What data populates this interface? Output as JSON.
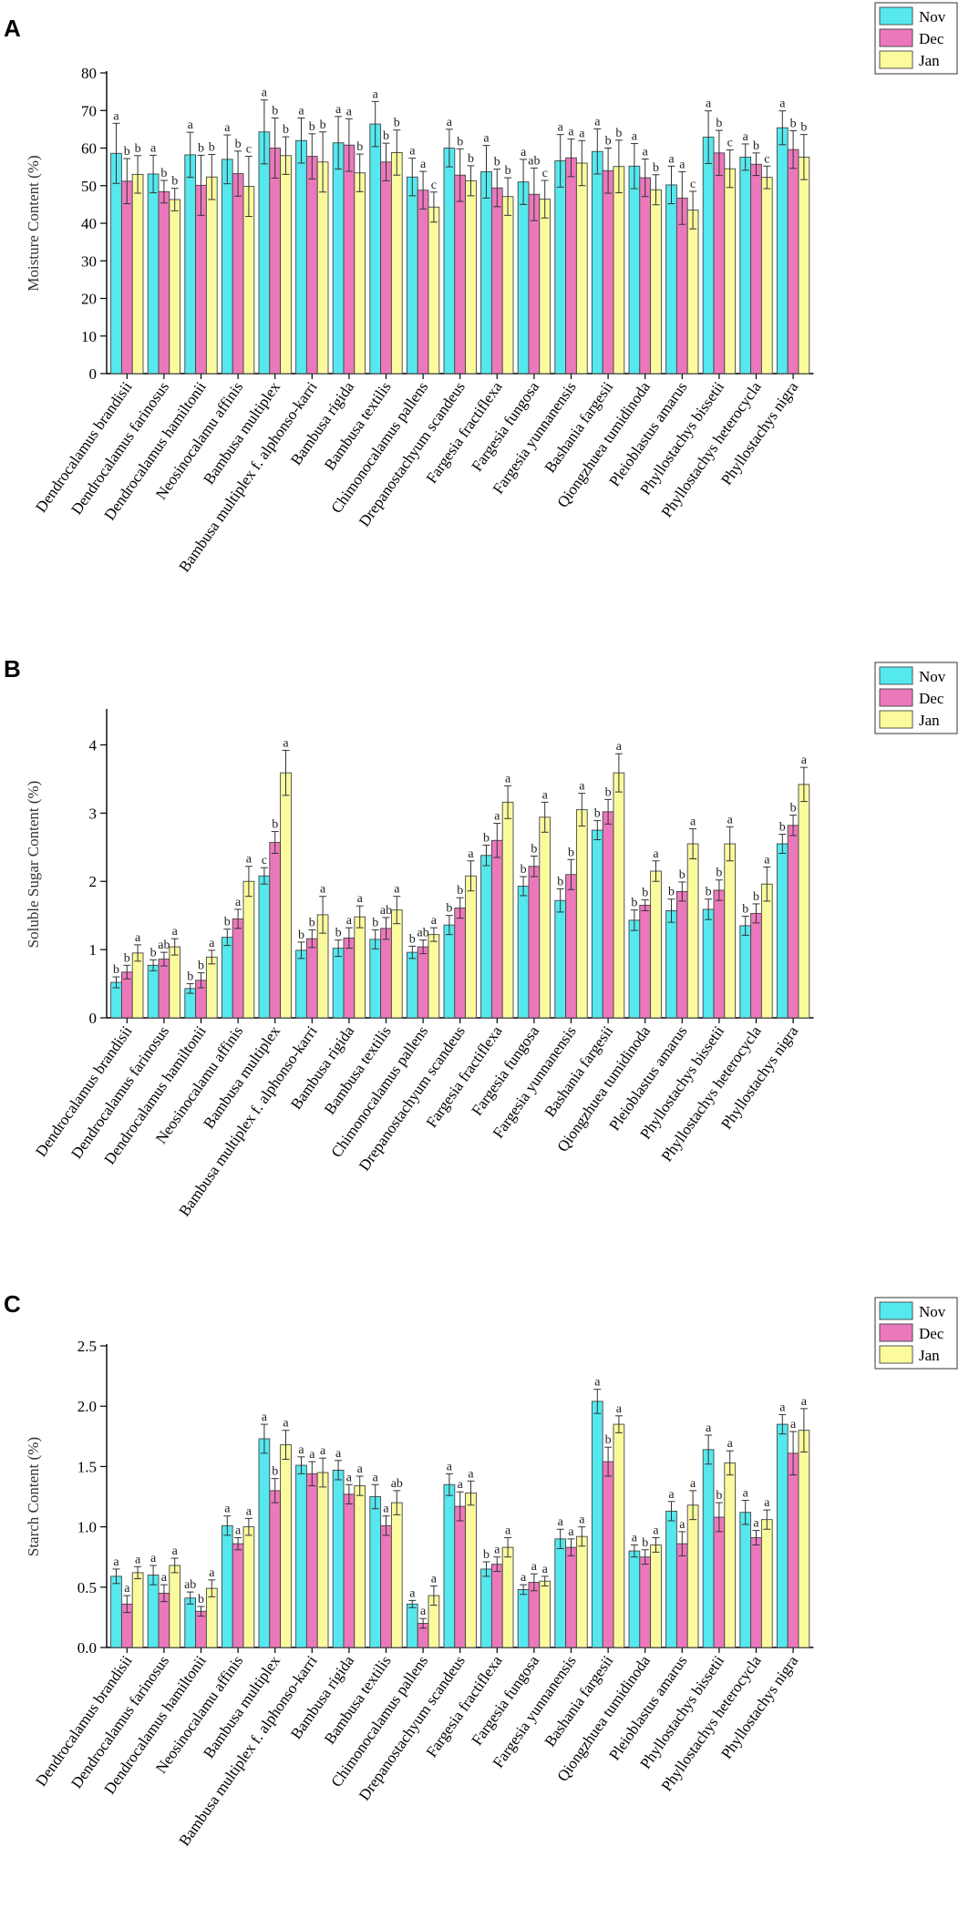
{
  "legend": [
    "Nov",
    "Dec",
    "Jan"
  ],
  "colors": {
    "Nov": "#55e8ee",
    "Dec": "#ec78bc",
    "Jan": "#fbfb9e",
    "outline": "#444444"
  },
  "chart_data": [
    {
      "panel": "A",
      "type": "bar",
      "ylabel": "Moisture Content (%)",
      "ylim": [
        0,
        80
      ],
      "yticks": [
        0,
        10,
        20,
        30,
        40,
        50,
        60,
        70,
        80
      ],
      "categories": [
        "Dendrocalamus brandisii",
        "Dendrocalamus farinosus",
        "Dendrocalamus hamiltonii",
        "Neosinocalamu affinis",
        "Bambusa multiplex",
        "Bambusa multiplex f. alphonso-karri",
        "Bambusa rigida",
        "Bambusa textilis",
        "Chimonocalamus pallens",
        "Drepanostachyum scandeus",
        "Fargesia fractiflexa",
        "Fargesia fungosa",
        "Fargesia yunnanensis",
        "Bashania fargesii",
        "Qiongzhuea tumidinoda",
        "Pleioblastus amarus",
        "Phyllostachys bissetii",
        "Phyllostachys heterocycla",
        "Phyllostachys nigra"
      ],
      "series": [
        {
          "name": "Nov",
          "values": [
            58.6,
            53.1,
            58.2,
            57.0,
            64.3,
            62.0,
            61.4,
            66.4,
            52.3,
            60.0,
            53.7,
            51.0,
            56.6,
            59.1,
            55.2,
            50.2,
            62.9,
            57.6,
            65.4
          ],
          "errors": [
            8,
            5,
            6,
            6.5,
            8.5,
            6,
            7,
            6,
            5,
            5,
            7,
            6,
            7,
            6,
            6,
            5,
            7,
            3.5,
            4.5
          ],
          "labels": [
            "a",
            "a",
            "a",
            "a",
            "a",
            "a",
            "a",
            "a",
            "a",
            "a",
            "a",
            "a",
            "a",
            "a",
            "a",
            "a",
            "a",
            "a",
            "a"
          ]
        },
        {
          "name": "Dec",
          "values": [
            51.2,
            48.4,
            50.1,
            53.2,
            60.0,
            57.8,
            60.8,
            56.3,
            48.8,
            52.8,
            49.4,
            47.7,
            57.4,
            54.0,
            52.1,
            46.7,
            58.7,
            55.7,
            59.6
          ],
          "errors": [
            6,
            3,
            8,
            6,
            8,
            6,
            7,
            5,
            5,
            7,
            5,
            7,
            5,
            6,
            5,
            7,
            6,
            3,
            5
          ],
          "labels": [
            "b",
            "b",
            "b",
            "b",
            "b",
            "b",
            "a",
            "b",
            "a",
            "b",
            "b",
            "ab",
            "a",
            "b",
            "a",
            "a",
            "b",
            "b",
            "b"
          ]
        },
        {
          "name": "Jan",
          "values": [
            53.0,
            46.3,
            52.3,
            49.8,
            58.0,
            56.3,
            53.4,
            58.8,
            44.3,
            51.3,
            47.1,
            46.4,
            56.0,
            55.1,
            48.9,
            43.5,
            54.5,
            52.2,
            57.6
          ],
          "errors": [
            5,
            3,
            6,
            8,
            5,
            8,
            5,
            6,
            4,
            4,
            5,
            5,
            6,
            7,
            4,
            5,
            5,
            3,
            6
          ],
          "labels": [
            "b",
            "b",
            "b",
            "c",
            "b",
            "b",
            "b",
            "b",
            "c",
            "b",
            "b",
            "c",
            "a",
            "b",
            "b",
            "c",
            "c",
            "c",
            "b"
          ]
        }
      ]
    },
    {
      "panel": "B",
      "type": "bar",
      "ylabel": "Soluble Sugar Content (%)",
      "ylim": [
        0,
        4.5
      ],
      "yticks": [
        0,
        1,
        2,
        3,
        4
      ],
      "categories": [
        "Dendrocalamus brandisii",
        "Dendrocalamus farinosus",
        "Dendrocalamus hamiltonii",
        "Neosinocalamu affinis",
        "Bambusa multiplex",
        "Bambusa multiplex f. alphonso-karri",
        "Bambusa rigida",
        "Bambusa textilis",
        "Chimonocalamus pallens",
        "Drepanostachyum scandeus",
        "Fargesia fractiflexa",
        "Fargesia fungosa",
        "Fargesia yunnanensis",
        "Bashania fargesii",
        "Qiongzhuea tumidinoda",
        "Pleioblastus amarus",
        "Phyllostachys bissetii",
        "Phyllostachys heterocycla",
        "Phyllostachys nigra"
      ],
      "series": [
        {
          "name": "Nov",
          "values": [
            0.52,
            0.77,
            0.43,
            1.18,
            2.08,
            0.99,
            1.02,
            1.15,
            0.96,
            1.36,
            2.38,
            1.93,
            1.72,
            2.75,
            1.43,
            1.57,
            1.59,
            1.35,
            2.55
          ],
          "errors": [
            0.08,
            0.08,
            0.07,
            0.12,
            0.12,
            0.12,
            0.12,
            0.14,
            0.09,
            0.14,
            0.15,
            0.14,
            0.17,
            0.14,
            0.15,
            0.17,
            0.15,
            0.14,
            0.14
          ],
          "labels": [
            "b",
            "b",
            "b",
            "b",
            "c",
            "b",
            "b",
            "b",
            "b",
            "b",
            "b",
            "b",
            "b",
            "b",
            "b",
            "b",
            "b",
            "b",
            "b"
          ]
        },
        {
          "name": "Dec",
          "values": [
            0.67,
            0.86,
            0.55,
            1.45,
            2.57,
            1.16,
            1.17,
            1.31,
            1.04,
            1.61,
            2.6,
            2.22,
            2.1,
            3.02,
            1.65,
            1.85,
            1.87,
            1.53,
            2.82
          ],
          "errors": [
            0.1,
            0.1,
            0.11,
            0.14,
            0.16,
            0.13,
            0.15,
            0.16,
            0.1,
            0.15,
            0.25,
            0.15,
            0.22,
            0.18,
            0.08,
            0.14,
            0.15,
            0.14,
            0.15
          ],
          "labels": [
            "b",
            "ab",
            "b",
            "a",
            "b",
            "b",
            "a",
            "ab",
            "ab",
            "b",
            "a",
            "b",
            "b",
            "b",
            "b",
            "b",
            "b",
            "b",
            "b"
          ]
        },
        {
          "name": "Jan",
          "values": [
            0.95,
            1.04,
            0.89,
            2.0,
            3.59,
            1.51,
            1.48,
            1.58,
            1.22,
            2.08,
            3.16,
            2.94,
            3.05,
            3.59,
            2.15,
            2.55,
            2.55,
            1.96,
            3.42
          ],
          "errors": [
            0.12,
            0.12,
            0.1,
            0.22,
            0.33,
            0.27,
            0.16,
            0.2,
            0.1,
            0.22,
            0.24,
            0.22,
            0.24,
            0.28,
            0.15,
            0.22,
            0.25,
            0.25,
            0.25
          ],
          "labels": [
            "a",
            "a",
            "a",
            "a",
            "a",
            "a",
            "a",
            "a",
            "a",
            "a",
            "a",
            "a",
            "a",
            "a",
            "a",
            "a",
            "a",
            "a",
            "a"
          ]
        }
      ]
    },
    {
      "panel": "C",
      "type": "bar",
      "ylabel": "Starch Content (%)",
      "ylim": [
        0,
        2.5
      ],
      "yticks": [
        0.0,
        0.5,
        1.0,
        1.5,
        2.0,
        2.5
      ],
      "categories": [
        "Dendrocalamus brandisii",
        "Dendrocalamus farinosus",
        "Dendrocalamus hamiltonii",
        "Neosinocalamu affinis",
        "Bambusa multiplex",
        "Bambusa multiplex f. alphonso-karri",
        "Bambusa rigida",
        "Bambusa textilis",
        "Chimonocalamus pallens",
        "Drepanostachyum scandeus",
        "Fargesia fractiflexa",
        "Fargesia fungosa",
        "Fargesia yunnanensis",
        "Bashania fargesii",
        "Qiongzhuea tumidinoda",
        "Pleioblastus amarus",
        "Phyllostachys bissetii",
        "Phyllostachys heterocycla",
        "Phyllostachys nigra"
      ],
      "series": [
        {
          "name": "Nov",
          "values": [
            0.59,
            0.6,
            0.41,
            1.01,
            1.73,
            1.51,
            1.47,
            1.25,
            0.36,
            1.35,
            0.65,
            0.48,
            0.9,
            2.04,
            0.8,
            1.13,
            1.64,
            1.12,
            1.85
          ],
          "errors": [
            0.06,
            0.08,
            0.05,
            0.08,
            0.12,
            0.07,
            0.08,
            0.1,
            0.03,
            0.09,
            0.06,
            0.04,
            0.08,
            0.1,
            0.05,
            0.08,
            0.12,
            0.1,
            0.08
          ],
          "labels": [
            "a",
            "a",
            "ab",
            "a",
            "a",
            "a",
            "a",
            "a",
            "a",
            "a",
            "b",
            "a",
            "a",
            "a",
            "a",
            "a",
            "a",
            "a",
            "a"
          ]
        },
        {
          "name": "Dec",
          "values": [
            0.36,
            0.45,
            0.3,
            0.86,
            1.3,
            1.44,
            1.27,
            1.01,
            0.2,
            1.17,
            0.69,
            0.54,
            0.83,
            1.54,
            0.75,
            0.86,
            1.08,
            0.91,
            1.61
          ],
          "errors": [
            0.07,
            0.07,
            0.04,
            0.05,
            0.1,
            0.1,
            0.08,
            0.08,
            0.04,
            0.12,
            0.06,
            0.07,
            0.07,
            0.12,
            0.06,
            0.1,
            0.12,
            0.06,
            0.18
          ],
          "labels": [
            "a",
            "a",
            "b",
            "a",
            "b",
            "a",
            "a",
            "a",
            "a",
            "a",
            "a",
            "a",
            "a",
            "b",
            "b",
            "a",
            "b",
            "a",
            "a"
          ]
        },
        {
          "name": "Jan",
          "values": [
            0.62,
            0.68,
            0.49,
            1.0,
            1.68,
            1.45,
            1.34,
            1.2,
            0.43,
            1.28,
            0.83,
            0.55,
            0.92,
            1.85,
            0.85,
            1.18,
            1.53,
            1.06,
            1.8
          ],
          "errors": [
            0.05,
            0.06,
            0.07,
            0.07,
            0.12,
            0.12,
            0.08,
            0.1,
            0.08,
            0.1,
            0.08,
            0.04,
            0.08,
            0.07,
            0.06,
            0.12,
            0.1,
            0.08,
            0.18
          ],
          "labels": [
            "a",
            "a",
            "a",
            "a",
            "a",
            "a",
            "a",
            "ab",
            "a",
            "a",
            "a",
            "a",
            "a",
            "a",
            "a",
            "a",
            "a",
            "a",
            "a"
          ]
        }
      ]
    }
  ]
}
